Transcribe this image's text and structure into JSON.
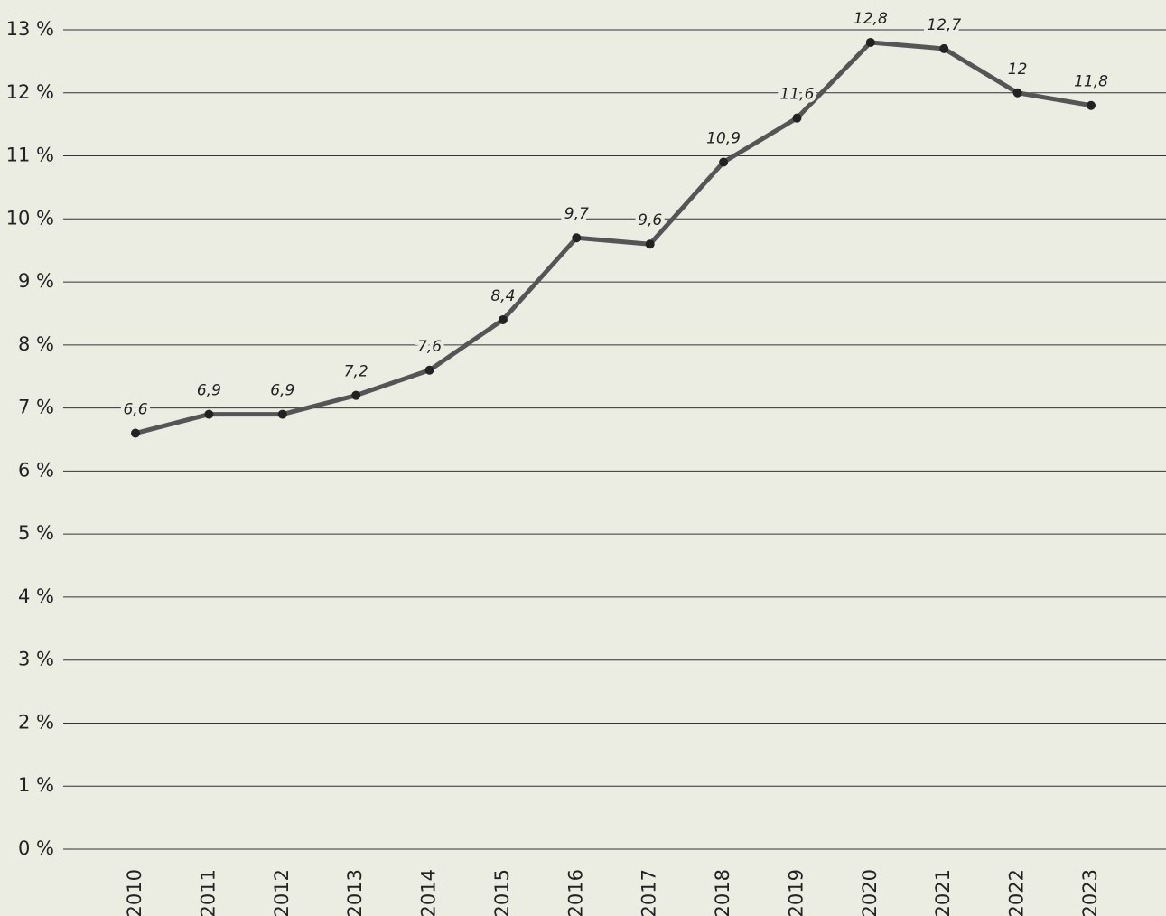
{
  "chart_data": {
    "type": "line",
    "categories": [
      "2010",
      "2011",
      "2012",
      "2013",
      "2014",
      "2015",
      "2016",
      "2017",
      "2018",
      "2019",
      "2020",
      "2021",
      "2022",
      "2023"
    ],
    "series": [
      {
        "name": null,
        "color": "#555555",
        "values": [
          6.6,
          6.9,
          6.9,
          7.2,
          7.6,
          8.4,
          9.7,
          9.6,
          10.9,
          11.6,
          12.8,
          12.7,
          12,
          11.8
        ],
        "value_labels": [
          "6,6",
          "6,9",
          "6,9",
          "7,2",
          "7,6",
          "8,4",
          "9,7",
          "9,6",
          "10,9",
          "11,6",
          "12,8",
          "12,7",
          "12",
          "11,8"
        ]
      }
    ],
    "ylim": [
      0,
      13
    ],
    "yticks": [
      {
        "value": 0,
        "label": "0 %"
      },
      {
        "value": 1,
        "label": "1 %"
      },
      {
        "value": 2,
        "label": "2 %"
      },
      {
        "value": 3,
        "label": "3 %"
      },
      {
        "value": 4,
        "label": "4 %"
      },
      {
        "value": 5,
        "label": "5 %"
      },
      {
        "value": 6,
        "label": "6 %"
      },
      {
        "value": 7,
        "label": "7 %"
      },
      {
        "value": 8,
        "label": "8 %"
      },
      {
        "value": 9,
        "label": "9 %"
      },
      {
        "value": 10,
        "label": "10 %"
      },
      {
        "value": 11,
        "label": "11 %"
      },
      {
        "value": 12,
        "label": "12 %"
      },
      {
        "value": 13,
        "label": "13 %"
      }
    ],
    "grid": true,
    "marker_color": "#222222"
  }
}
